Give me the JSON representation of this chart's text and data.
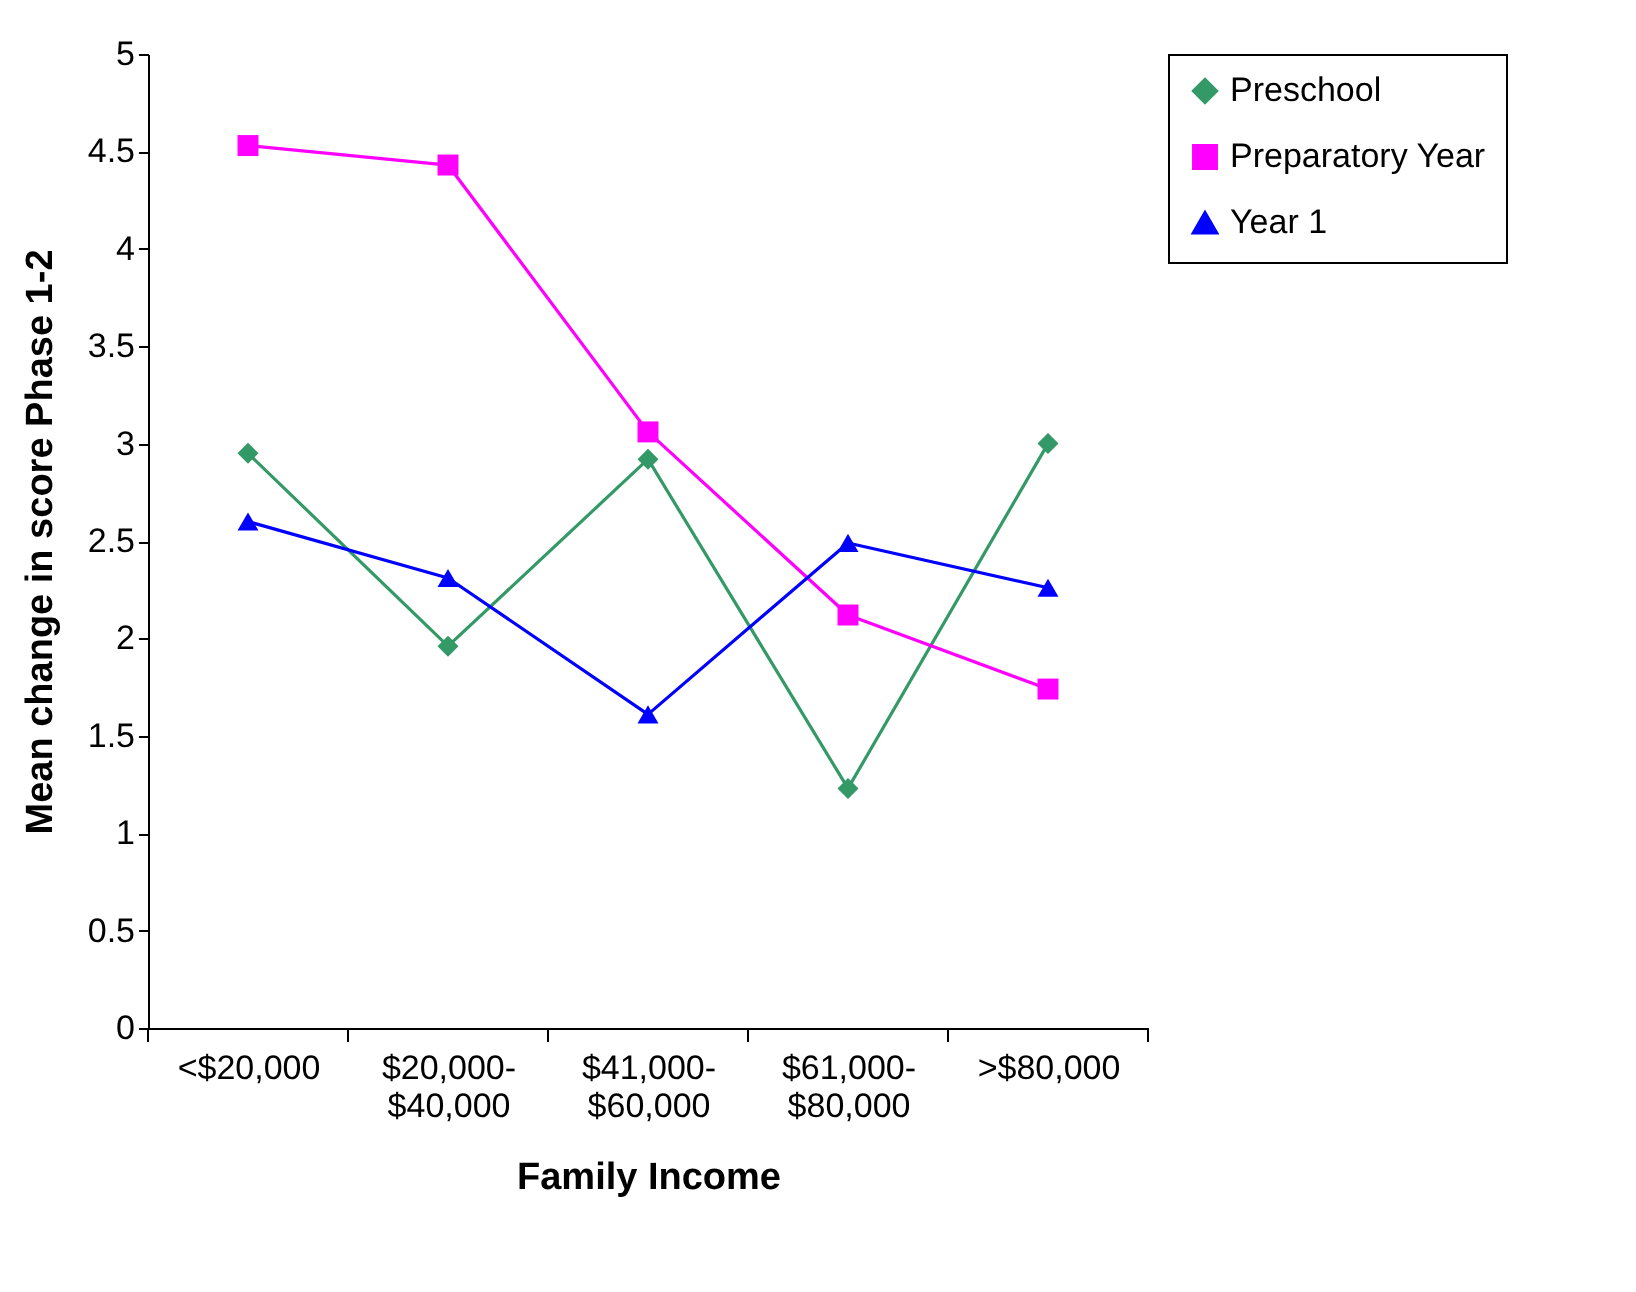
{
  "chart_data": {
    "type": "line",
    "xlabel": "Family Income",
    "ylabel": "Mean change in score Phase 1-2",
    "categories": [
      "<$20,000",
      "$20,000-$40,000",
      "$41,000-$60,000",
      "$61,000-$80,000",
      ">$80,000"
    ],
    "series": [
      {
        "name": "Preschool",
        "color": "#339966",
        "marker": "diamond",
        "values": [
          2.95,
          1.96,
          2.92,
          1.23,
          3.0
        ]
      },
      {
        "name": "Preparatory Year",
        "color": "#ff00ff",
        "marker": "square",
        "values": [
          4.53,
          4.43,
          3.06,
          2.12,
          1.74
        ]
      },
      {
        "name": "Year 1",
        "color": "#0000ff",
        "marker": "triangle",
        "values": [
          2.6,
          2.31,
          1.61,
          2.49,
          2.26
        ]
      }
    ],
    "ylim": [
      0,
      5
    ],
    "yticks": [
      0,
      0.5,
      1,
      1.5,
      2,
      2.5,
      3,
      3.5,
      4,
      4.5,
      5
    ],
    "grid": false,
    "legend": "right",
    "line_style": "solid"
  }
}
